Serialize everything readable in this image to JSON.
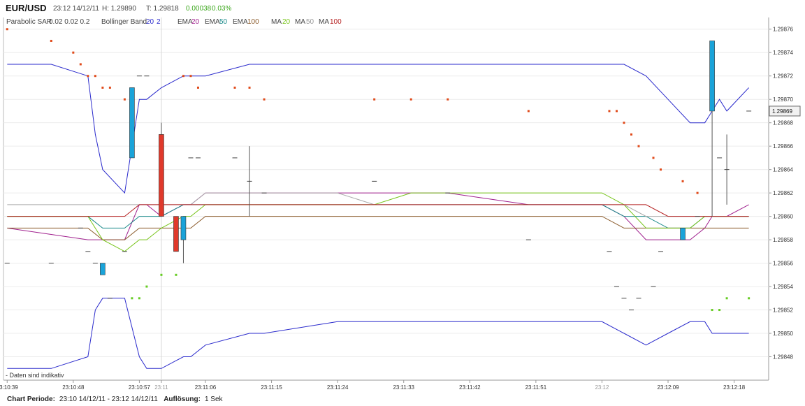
{
  "header": {
    "pair": "EUR/USD",
    "datetime": "23:12 14/12/11",
    "high": "H: 1.29890",
    "low": "T: 1.29818",
    "change": "0.00038",
    "change_pct": "0.03%"
  },
  "indicators": {
    "psar_label": "Parabolic SAR",
    "psar_params": "0.02  0.02  0.2",
    "bb_label": "Bollinger Band",
    "bb_period": "20",
    "bb_dev": "2",
    "ema1_label": "EMA",
    "ema1_val": "20",
    "ema2_label": "EMA",
    "ema2_val": "50",
    "ema3_label": "EMA",
    "ema3_val": "100",
    "ma1_label": "MA",
    "ma1_val": "20",
    "ma2_label": "MA",
    "ma2_val": "50",
    "ma3_label": "MA",
    "ma3_val": "100"
  },
  "colors": {
    "bull": "#1aa3d9",
    "bear": "#e0392b",
    "bb": "#2a2acc",
    "ema20": "#a0208e",
    "ema50": "#1a8a8a",
    "ema100": "#8a5a2a",
    "ma20": "#77c41a",
    "ma50": "#aaaaaa",
    "ma100": "#b52020",
    "sar_bear": "#e04a1a",
    "sar_bull": "#66cc22"
  },
  "disclaimer": "- Daten sind indikativ",
  "footer": {
    "period_label": "Chart Periode:",
    "period_value": "23:10 14/12/11 - 23:12 14/12/11",
    "res_label": "Auflösung:",
    "res_value": "1 Sek"
  },
  "chart_data": {
    "type": "candlestick",
    "x_ticks": [
      [
        "23:10:39",
        0
      ],
      [
        "23:10:48",
        9
      ],
      [
        "23:10:57",
        18
      ],
      [
        "23:11",
        21
      ],
      [
        "23:11:06",
        27
      ],
      [
        "23:11:15",
        36
      ],
      [
        "23:11:24",
        45
      ],
      [
        "23:11:33",
        54
      ],
      [
        "23:11:42",
        63
      ],
      [
        "23:11:51",
        72
      ],
      [
        "23:12",
        81
      ],
      [
        "23:12:09",
        90
      ],
      [
        "23:12:18",
        99
      ]
    ],
    "y_ticks": [
      "1.29876",
      "1.29874",
      "1.29872",
      "1.29870",
      "1.29868",
      "1.29866",
      "1.29864",
      "1.29862",
      "1.29860",
      "1.29858",
      "1.29856",
      "1.29854",
      "1.29852",
      "1.29850",
      "1.29848"
    ],
    "ylim": [
      1.29846,
      1.29877
    ],
    "xlim": [
      -0.5,
      103.7
    ],
    "current_price": "1.29869",
    "current_value": 1.29869,
    "vline_x": 21,
    "candles": [
      {
        "t": 0,
        "o": 1.29856,
        "h": 1.29856,
        "l": 1.29856,
        "c": 1.29856
      },
      {
        "t": 6,
        "o": 1.29856,
        "h": 1.29856,
        "l": 1.29856,
        "c": 1.29856
      },
      {
        "t": 10,
        "o": 1.29859,
        "h": 1.29859,
        "l": 1.29859,
        "c": 1.29859
      },
      {
        "t": 11,
        "o": 1.29857,
        "h": 1.29857,
        "l": 1.29857,
        "c": 1.29857
      },
      {
        "t": 12,
        "o": 1.29856,
        "h": 1.29856,
        "l": 1.29856,
        "c": 1.29856
      },
      {
        "t": 13,
        "o": 1.29855,
        "h": 1.29856,
        "l": 1.29855,
        "c": 1.29856
      },
      {
        "t": 14,
        "o": 1.29853,
        "h": 1.29853,
        "l": 1.29853,
        "c": 1.29853
      },
      {
        "t": 16,
        "o": 1.29857,
        "h": 1.29857,
        "l": 1.29857,
        "c": 1.29857
      },
      {
        "t": 17,
        "o": 1.29865,
        "h": 1.29871,
        "l": 1.29865,
        "c": 1.29871
      },
      {
        "t": 18,
        "o": 1.29872,
        "h": 1.29872,
        "l": 1.29872,
        "c": 1.29872
      },
      {
        "t": 19,
        "o": 1.29872,
        "h": 1.29872,
        "l": 1.29872,
        "c": 1.29872
      },
      {
        "t": 21,
        "o": 1.29867,
        "h": 1.29868,
        "l": 1.2986,
        "c": 1.2986
      },
      {
        "t": 23,
        "o": 1.2986,
        "h": 1.2986,
        "l": 1.29857,
        "c": 1.29857
      },
      {
        "t": 24,
        "o": 1.29858,
        "h": 1.2986,
        "l": 1.29856,
        "c": 1.2986
      },
      {
        "t": 25,
        "o": 1.29865,
        "h": 1.29865,
        "l": 1.29865,
        "c": 1.29865
      },
      {
        "t": 26,
        "o": 1.29865,
        "h": 1.29865,
        "l": 1.29865,
        "c": 1.29865
      },
      {
        "t": 31,
        "o": 1.29865,
        "h": 1.29865,
        "l": 1.29865,
        "c": 1.29865
      },
      {
        "t": 33,
        "o": 1.29863,
        "h": 1.29866,
        "l": 1.2986,
        "c": 1.29863
      },
      {
        "t": 35,
        "o": 1.29862,
        "h": 1.29862,
        "l": 1.29862,
        "c": 1.29862
      },
      {
        "t": 50,
        "o": 1.29863,
        "h": 1.29863,
        "l": 1.29863,
        "c": 1.29863
      },
      {
        "t": 60,
        "o": 1.29862,
        "h": 1.29862,
        "l": 1.29862,
        "c": 1.29862
      },
      {
        "t": 71,
        "o": 1.29858,
        "h": 1.29858,
        "l": 1.29858,
        "c": 1.29858
      },
      {
        "t": 82,
        "o": 1.29857,
        "h": 1.29857,
        "l": 1.29857,
        "c": 1.29857
      },
      {
        "t": 83,
        "o": 1.29854,
        "h": 1.29854,
        "l": 1.29854,
        "c": 1.29854
      },
      {
        "t": 84,
        "o": 1.29853,
        "h": 1.29853,
        "l": 1.29853,
        "c": 1.29853
      },
      {
        "t": 85,
        "o": 1.29852,
        "h": 1.29852,
        "l": 1.29852,
        "c": 1.29852
      },
      {
        "t": 86,
        "o": 1.29853,
        "h": 1.29853,
        "l": 1.29853,
        "c": 1.29853
      },
      {
        "t": 88,
        "o": 1.29854,
        "h": 1.29854,
        "l": 1.29854,
        "c": 1.29854
      },
      {
        "t": 89,
        "o": 1.29857,
        "h": 1.29857,
        "l": 1.29857,
        "c": 1.29857
      },
      {
        "t": 92,
        "o": 1.29858,
        "h": 1.29859,
        "l": 1.29858,
        "c": 1.29859
      },
      {
        "t": 94,
        "o": 1.2986,
        "h": 1.2986,
        "l": 1.2986,
        "c": 1.2986
      },
      {
        "t": 96,
        "o": 1.29869,
        "h": 1.29875,
        "l": 1.2986,
        "c": 1.29875
      },
      {
        "t": 97,
        "o": 1.29865,
        "h": 1.29865,
        "l": 1.29865,
        "c": 1.29865
      },
      {
        "t": 98,
        "o": 1.29864,
        "h": 1.29867,
        "l": 1.29861,
        "c": 1.29864
      },
      {
        "t": 101,
        "o": 1.29869,
        "h": 1.29869,
        "l": 1.29869,
        "c": 1.29869
      }
    ],
    "sar": [
      {
        "t": 0,
        "v": 1.29876
      },
      {
        "t": 6,
        "v": 1.29875
      },
      {
        "t": 9,
        "v": 1.29874
      },
      {
        "t": 10,
        "v": 1.29873
      },
      {
        "t": 11,
        "v": 1.29872
      },
      {
        "t": 12,
        "v": 1.29872
      },
      {
        "t": 13,
        "v": 1.29871
      },
      {
        "t": 14,
        "v": 1.29871
      },
      {
        "t": 16,
        "v": 1.2987
      },
      {
        "t": 17,
        "v": 1.29853
      },
      {
        "t": 18,
        "v": 1.29853
      },
      {
        "t": 19,
        "v": 1.29854
      },
      {
        "t": 21,
        "v": 1.29855
      },
      {
        "t": 23,
        "v": 1.29855
      },
      {
        "t": 24,
        "v": 1.29872
      },
      {
        "t": 25,
        "v": 1.29872
      },
      {
        "t": 26,
        "v": 1.29871
      },
      {
        "t": 31,
        "v": 1.29871
      },
      {
        "t": 33,
        "v": 1.29871
      },
      {
        "t": 35,
        "v": 1.2987
      },
      {
        "t": 50,
        "v": 1.2987
      },
      {
        "t": 55,
        "v": 1.2987
      },
      {
        "t": 60,
        "v": 1.2987
      },
      {
        "t": 71,
        "v": 1.29869
      },
      {
        "t": 82,
        "v": 1.29869
      },
      {
        "t": 83,
        "v": 1.29869
      },
      {
        "t": 84,
        "v": 1.29868
      },
      {
        "t": 85,
        "v": 1.29867
      },
      {
        "t": 86,
        "v": 1.29866
      },
      {
        "t": 88,
        "v": 1.29865
      },
      {
        "t": 89,
        "v": 1.29864
      },
      {
        "t": 92,
        "v": 1.29863
      },
      {
        "t": 94,
        "v": 1.29862
      },
      {
        "t": 96,
        "v": 1.29852
      },
      {
        "t": 97,
        "v": 1.29852
      },
      {
        "t": 98,
        "v": 1.29853
      },
      {
        "t": 101,
        "v": 1.29853
      }
    ],
    "series": [
      {
        "name": "BB upper",
        "color_key": "bb",
        "x": [
          0,
          6,
          11,
          12,
          13,
          16,
          18,
          19,
          21,
          24,
          25,
          27,
          33,
          35,
          45,
          50,
          55,
          60,
          71,
          81,
          84,
          87,
          90,
          93,
          95,
          96,
          97,
          98,
          101
        ],
        "y": [
          1.29873,
          1.29873,
          1.29872,
          1.29867,
          1.29864,
          1.29862,
          1.2987,
          1.2987,
          1.29871,
          1.29872,
          1.29872,
          1.29872,
          1.29873,
          1.29873,
          1.29873,
          1.29873,
          1.29873,
          1.29873,
          1.29873,
          1.29873,
          1.29873,
          1.29872,
          1.2987,
          1.29868,
          1.29868,
          1.29869,
          1.2987,
          1.29869,
          1.29871
        ]
      },
      {
        "name": "BB lower",
        "color_key": "bb",
        "x": [
          0,
          6,
          11,
          12,
          13,
          16,
          18,
          19,
          21,
          24,
          25,
          27,
          33,
          35,
          45,
          50,
          55,
          60,
          71,
          81,
          84,
          87,
          90,
          93,
          95,
          96,
          97,
          98,
          101
        ],
        "y": [
          1.29847,
          1.29847,
          1.29848,
          1.29852,
          1.29853,
          1.29853,
          1.29848,
          1.29847,
          1.29847,
          1.29848,
          1.29848,
          1.29849,
          1.2985,
          1.2985,
          1.29851,
          1.29851,
          1.29851,
          1.29851,
          1.29851,
          1.29851,
          1.2985,
          1.29849,
          1.2985,
          1.29851,
          1.29851,
          1.2985,
          1.2985,
          1.2985,
          1.2985
        ]
      },
      {
        "name": "EMA 20",
        "color_key": "ema20",
        "x": [
          0,
          11,
          13,
          16,
          18,
          19,
          21,
          24,
          25,
          27,
          33,
          35,
          45,
          50,
          55,
          60,
          71,
          81,
          84,
          87,
          90,
          93,
          95,
          96,
          97,
          98,
          101
        ],
        "y": [
          1.29859,
          1.29858,
          1.29858,
          1.29858,
          1.29861,
          1.29861,
          1.2986,
          1.29861,
          1.29861,
          1.29862,
          1.29862,
          1.29862,
          1.29862,
          1.29862,
          1.29862,
          1.29862,
          1.29861,
          1.29861,
          1.2986,
          1.29858,
          1.29858,
          1.29858,
          1.29859,
          1.2986,
          1.2986,
          1.2986,
          1.29861
        ]
      },
      {
        "name": "EMA 50",
        "color_key": "ema50",
        "x": [
          0,
          11,
          13,
          16,
          18,
          19,
          21,
          24,
          25,
          27,
          33,
          35,
          45,
          50,
          55,
          60,
          71,
          81,
          84,
          87,
          90,
          93,
          95,
          96,
          97,
          98,
          101
        ],
        "y": [
          1.2986,
          1.2986,
          1.29859,
          1.29859,
          1.2986,
          1.2986,
          1.2986,
          1.29861,
          1.29861,
          1.29861,
          1.29861,
          1.29861,
          1.29861,
          1.29861,
          1.29861,
          1.29861,
          1.29861,
          1.29861,
          1.2986,
          1.2986,
          1.29859,
          1.29859,
          1.2986,
          1.2986,
          1.2986,
          1.2986,
          1.2986
        ]
      },
      {
        "name": "EMA 100",
        "color_key": "ema100",
        "x": [
          0,
          11,
          13,
          16,
          18,
          19,
          21,
          24,
          25,
          27,
          33,
          35,
          45,
          50,
          55,
          60,
          71,
          81,
          84,
          87,
          90,
          93,
          95,
          96,
          97,
          98,
          101
        ],
        "y": [
          1.29859,
          1.29859,
          1.29858,
          1.29858,
          1.29859,
          1.29859,
          1.29859,
          1.29859,
          1.29859,
          1.2986,
          1.2986,
          1.2986,
          1.2986,
          1.2986,
          1.2986,
          1.2986,
          1.2986,
          1.2986,
          1.29859,
          1.29859,
          1.29859,
          1.29859,
          1.29859,
          1.29859,
          1.29859,
          1.29859,
          1.29859
        ]
      },
      {
        "name": "MA 20",
        "color_key": "ma20",
        "x": [
          0,
          11,
          13,
          16,
          18,
          19,
          21,
          24,
          25,
          27,
          33,
          35,
          45,
          50,
          55,
          60,
          71,
          81,
          84,
          87,
          90,
          93,
          95,
          96,
          97,
          98,
          101
        ],
        "y": [
          1.2986,
          1.2986,
          1.29858,
          1.29857,
          1.29858,
          1.29858,
          1.29859,
          1.2986,
          1.2986,
          1.29861,
          1.29861,
          1.29861,
          1.29861,
          1.29861,
          1.29862,
          1.29862,
          1.29862,
          1.29862,
          1.29861,
          1.29859,
          1.29859,
          1.29859,
          1.2986,
          1.2986,
          1.2986,
          1.2986,
          1.2986
        ]
      },
      {
        "name": "MA 50",
        "color_key": "ma50",
        "x": [
          0,
          11,
          13,
          16,
          18,
          19,
          21,
          24,
          25,
          27,
          33,
          35,
          45,
          50,
          55,
          60,
          71,
          81,
          84,
          87,
          90,
          93,
          95,
          96,
          97,
          98,
          101
        ],
        "y": [
          1.29861,
          1.29861,
          1.29861,
          1.29861,
          1.29861,
          1.29861,
          1.29861,
          1.29861,
          1.29861,
          1.29862,
          1.29862,
          1.29862,
          1.29862,
          1.29861,
          1.29861,
          1.29861,
          1.29861,
          1.29861,
          1.29861,
          1.2986,
          1.2986,
          1.2986,
          1.2986,
          1.2986,
          1.2986,
          1.2986,
          1.2986
        ]
      },
      {
        "name": "MA 100",
        "color_key": "ma100",
        "x": [
          0,
          11,
          13,
          16,
          18,
          19,
          21,
          24,
          25,
          27,
          33,
          35,
          45,
          50,
          55,
          60,
          71,
          81,
          84,
          87,
          90,
          93,
          95,
          96,
          97,
          98,
          101
        ],
        "y": [
          1.2986,
          1.2986,
          1.2986,
          1.2986,
          1.29861,
          1.29861,
          1.29861,
          1.29861,
          1.29861,
          1.29861,
          1.29861,
          1.29861,
          1.29861,
          1.29861,
          1.29861,
          1.29861,
          1.29861,
          1.29861,
          1.29861,
          1.29861,
          1.2986,
          1.2986,
          1.2986,
          1.2986,
          1.2986,
          1.2986,
          1.2986
        ]
      }
    ]
  }
}
